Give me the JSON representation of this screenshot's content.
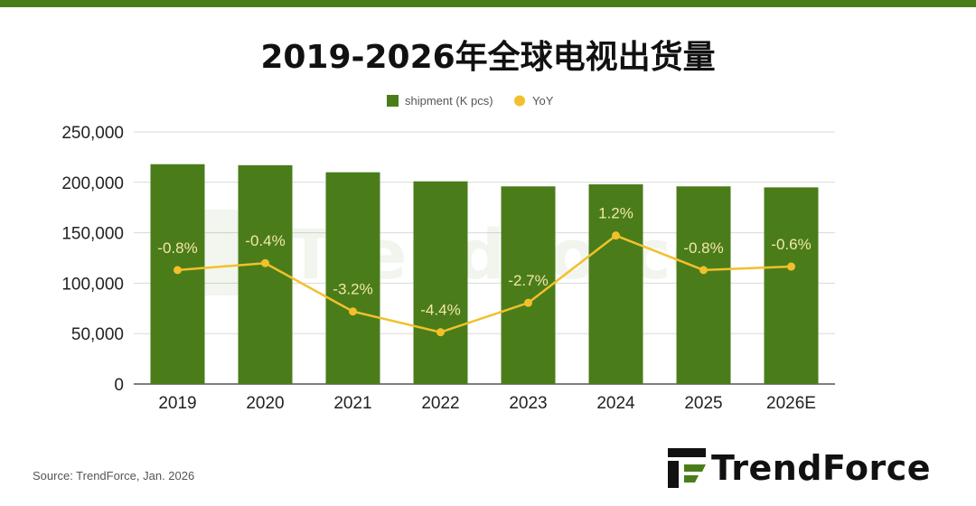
{
  "title": "2019-2026年全球电视出货量",
  "source": "Source: TrendForce, Jan. 2026",
  "logo_text": "TrendForce",
  "colors": {
    "bar": "#4a7d1a",
    "line": "#f2c02b",
    "topbar": "#4a7d1a",
    "grid": "#d9d9d9",
    "yoy_label": "#f5e6a8"
  },
  "chart_data": {
    "type": "bar",
    "categories": [
      "2019",
      "2020",
      "2021",
      "2022",
      "2023",
      "2024",
      "2025",
      "2026E"
    ],
    "series": [
      {
        "name": "shipment (K pcs)",
        "type": "bar",
        "values": [
          218000,
          217000,
          210000,
          201000,
          196000,
          198000,
          196000,
          195000
        ]
      },
      {
        "name": "YoY",
        "type": "line",
        "values": [
          -0.8,
          -0.4,
          -3.2,
          -4.4,
          -2.7,
          1.2,
          -0.8,
          -0.6
        ],
        "labels": [
          "-0.8%",
          "-0.4%",
          "-3.2%",
          "-4.4%",
          "-2.7%",
          "1.2%",
          "-0.8%",
          "-0.6%"
        ]
      }
    ],
    "yticks": [
      "250,000",
      "200,000",
      "150,000",
      "100,000",
      "50,000",
      "0"
    ],
    "ylim": [
      0,
      250000
    ],
    "y2lim": [
      -7.4,
      7.2
    ],
    "grid": true,
    "legend": "top"
  }
}
